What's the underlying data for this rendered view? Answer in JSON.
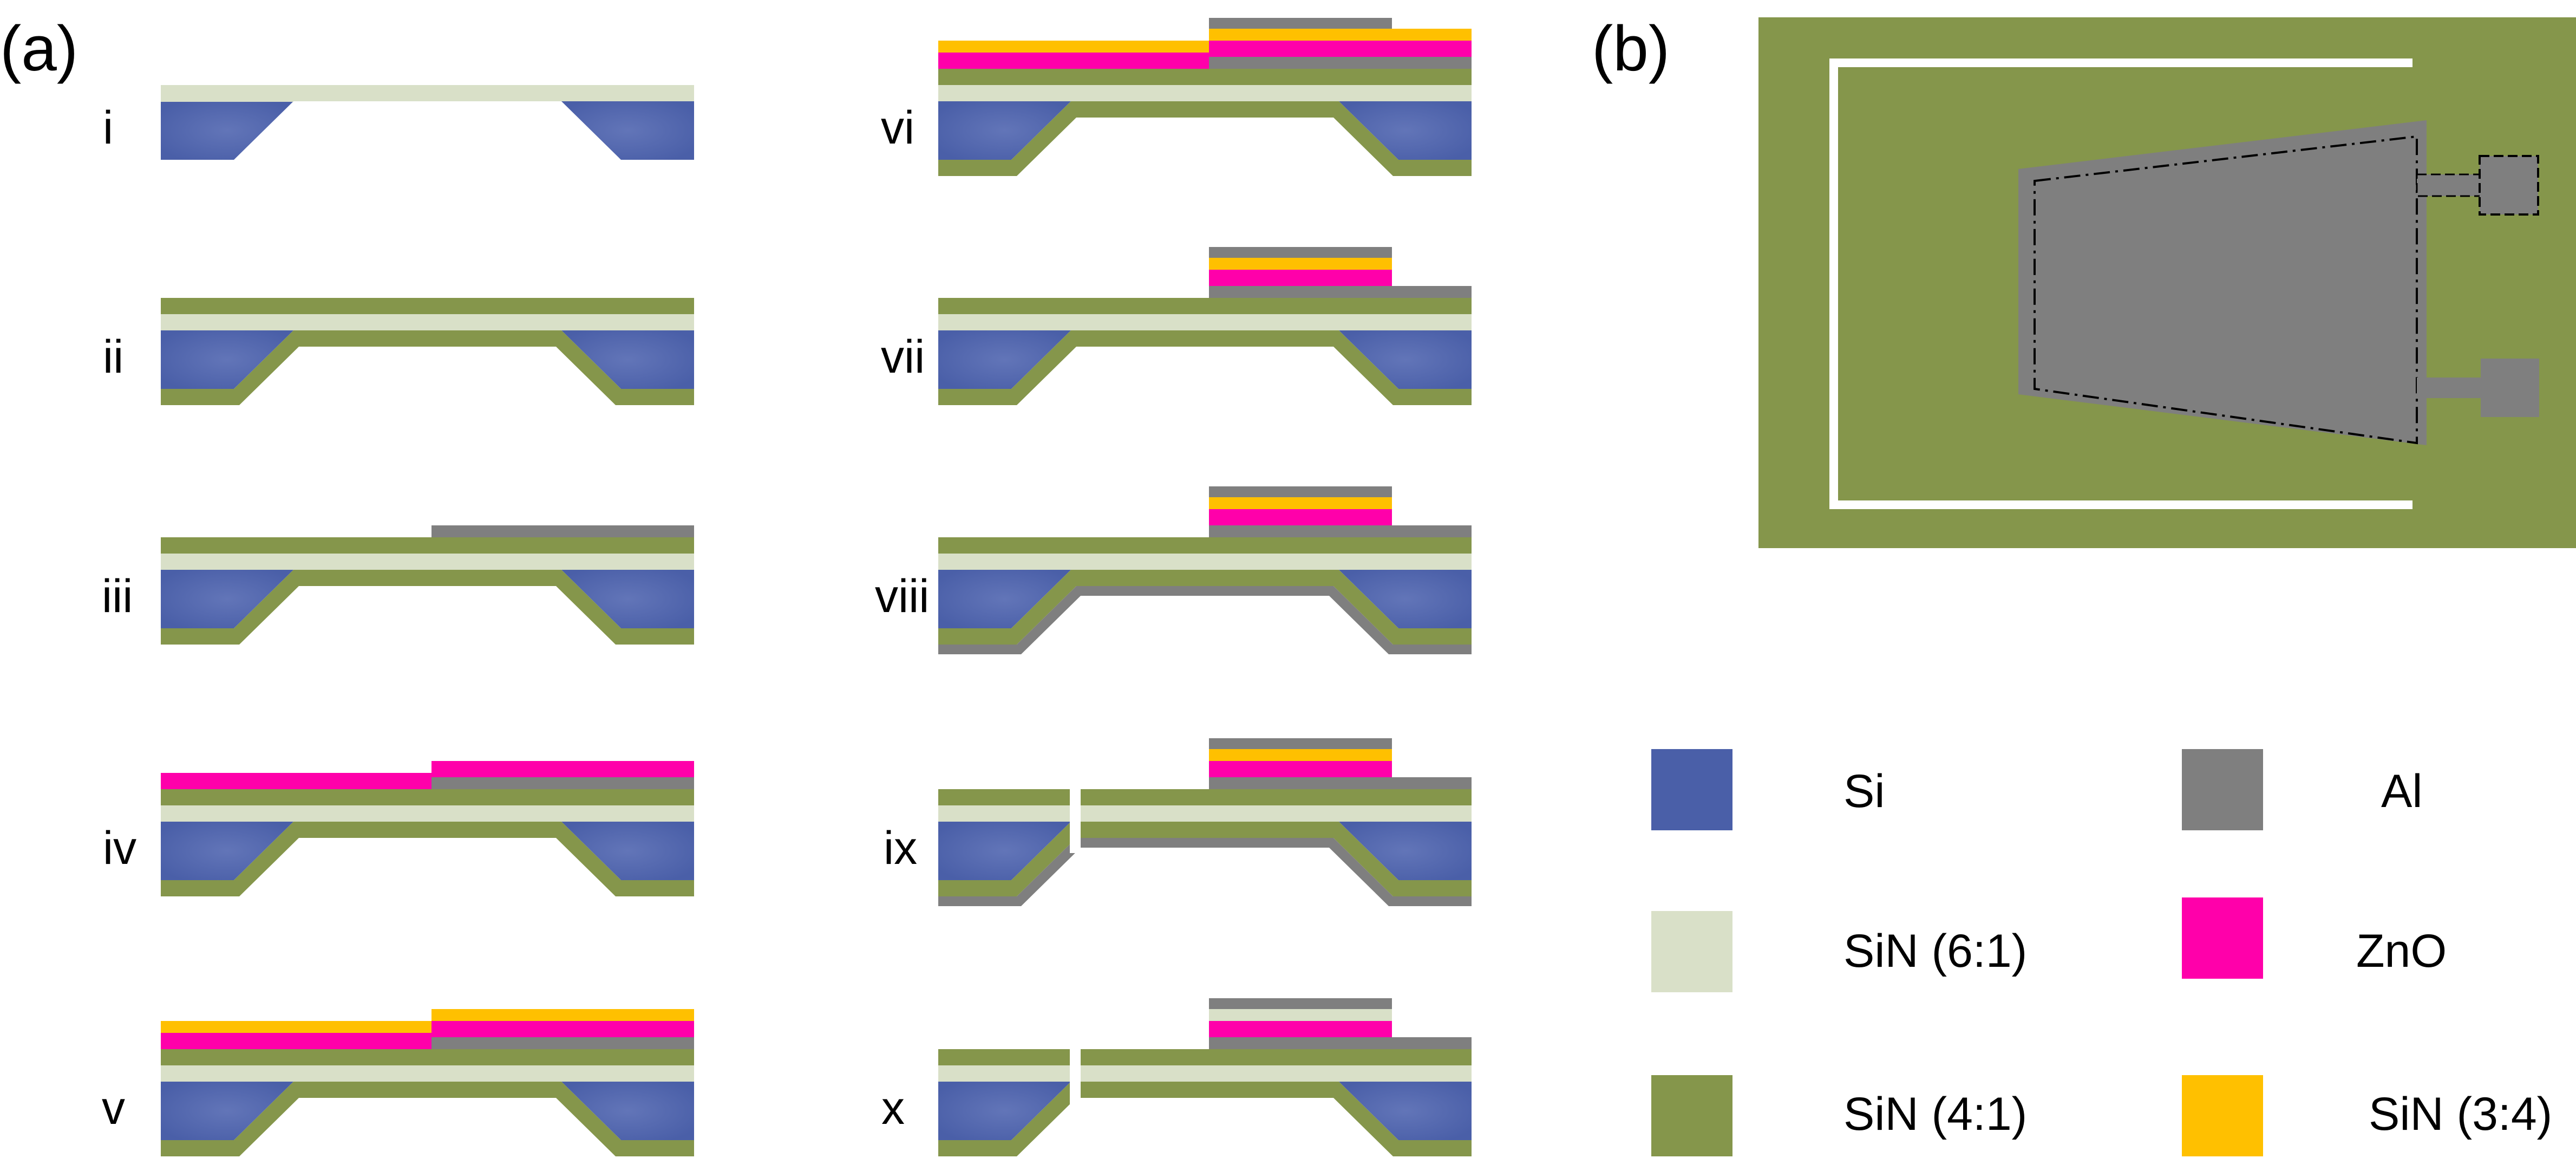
{
  "panel_a": {
    "label": "(a)",
    "steps": [
      "i",
      "ii",
      "iii",
      "iv",
      "v",
      "vi",
      "vii",
      "viii",
      "ix",
      "x"
    ]
  },
  "panel_b": {
    "label": "(b)"
  },
  "legend": {
    "items": [
      {
        "label": "Si",
        "color": "#4a5fa8"
      },
      {
        "label": "SiN (6:1)",
        "color": "#d9e0c8"
      },
      {
        "label": "SiN (4:1)",
        "color": "#85964b"
      },
      {
        "label": "Al",
        "color": "#7f7f7f"
      },
      {
        "label": "ZnO",
        "color": "#ff00aa"
      },
      {
        "label": "SiN (3:4)",
        "color": "#ffc000"
      }
    ]
  },
  "colors": {
    "si": "#4a5fa8",
    "si_light": "#6275b8",
    "sin61": "#d9e0c8",
    "sin41": "#85964b",
    "al": "#7f7f7f",
    "zno": "#ff00aa",
    "sin34": "#ffc000",
    "white": "#ffffff"
  }
}
